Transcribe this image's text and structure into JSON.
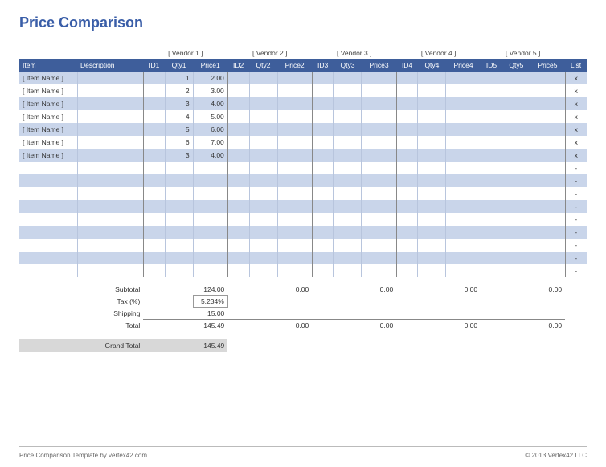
{
  "title": "Price Comparison",
  "colors": {
    "title": "#3a5ea8",
    "header_bg": "#3e5e9b",
    "header_text": "#ffffff",
    "row_alt_bg": "#c9d5ea",
    "grand_bg": "#d8d8d8",
    "rule": "#b8c5dd"
  },
  "vendors": [
    "[ Vendor 1 ]",
    "[ Vendor 2 ]",
    "[ Vendor 3 ]",
    "[ Vendor 4 ]",
    "[ Vendor 5 ]"
  ],
  "columns": {
    "item": "Item",
    "description": "Description",
    "groups": [
      {
        "id": "ID1",
        "qty": "Qty1",
        "price": "Price1"
      },
      {
        "id": "ID2",
        "qty": "Qty2",
        "price": "Price2"
      },
      {
        "id": "ID3",
        "qty": "Qty3",
        "price": "Price3"
      },
      {
        "id": "ID4",
        "qty": "Qty4",
        "price": "Price4"
      },
      {
        "id": "ID5",
        "qty": "Qty5",
        "price": "Price5"
      }
    ],
    "list": "List"
  },
  "rows": [
    {
      "item": "[ Item Name ]",
      "qty1": "1",
      "price1": "2.00",
      "list": "x"
    },
    {
      "item": "[ Item Name ]",
      "qty1": "2",
      "price1": "3.00",
      "list": "x"
    },
    {
      "item": "[ Item Name ]",
      "qty1": "3",
      "price1": "4.00",
      "list": "x"
    },
    {
      "item": "[ Item Name ]",
      "qty1": "4",
      "price1": "5.00",
      "list": "x"
    },
    {
      "item": "[ Item Name ]",
      "qty1": "5",
      "price1": "6.00",
      "list": "x"
    },
    {
      "item": "[ Item Name ]",
      "qty1": "6",
      "price1": "7.00",
      "list": "x"
    },
    {
      "item": "[ Item Name ]",
      "qty1": "3",
      "price1": "4.00",
      "list": "x"
    },
    {
      "item": "",
      "qty1": "",
      "price1": "",
      "list": "-"
    },
    {
      "item": "",
      "qty1": "",
      "price1": "",
      "list": "-"
    },
    {
      "item": "",
      "qty1": "",
      "price1": "",
      "list": "-"
    },
    {
      "item": "",
      "qty1": "",
      "price1": "",
      "list": "-"
    },
    {
      "item": "",
      "qty1": "",
      "price1": "",
      "list": "-"
    },
    {
      "item": "",
      "qty1": "",
      "price1": "",
      "list": "-"
    },
    {
      "item": "",
      "qty1": "",
      "price1": "",
      "list": "-"
    },
    {
      "item": "",
      "qty1": "",
      "price1": "",
      "list": "-"
    },
    {
      "item": "",
      "qty1": "",
      "price1": "",
      "list": "-"
    }
  ],
  "totals": {
    "labels": {
      "subtotal": "Subtotal",
      "tax": "Tax (%)",
      "shipping": "Shipping",
      "total": "Total",
      "grand": "Grand Total"
    },
    "subtotal": [
      "124.00",
      "0.00",
      "0.00",
      "0.00",
      "0.00"
    ],
    "tax": "5.234%",
    "shipping": "15.00",
    "total": [
      "145.49",
      "0.00",
      "0.00",
      "0.00",
      "0.00"
    ],
    "grand": "145.49"
  },
  "footer": {
    "left": "Price Comparison Template by vertex42.com",
    "right": "© 2013 Vertex42 LLC"
  },
  "col_widths": {
    "item": 70,
    "desc": 80,
    "id": 26,
    "qty": 34,
    "price": 42,
    "list": 26
  }
}
